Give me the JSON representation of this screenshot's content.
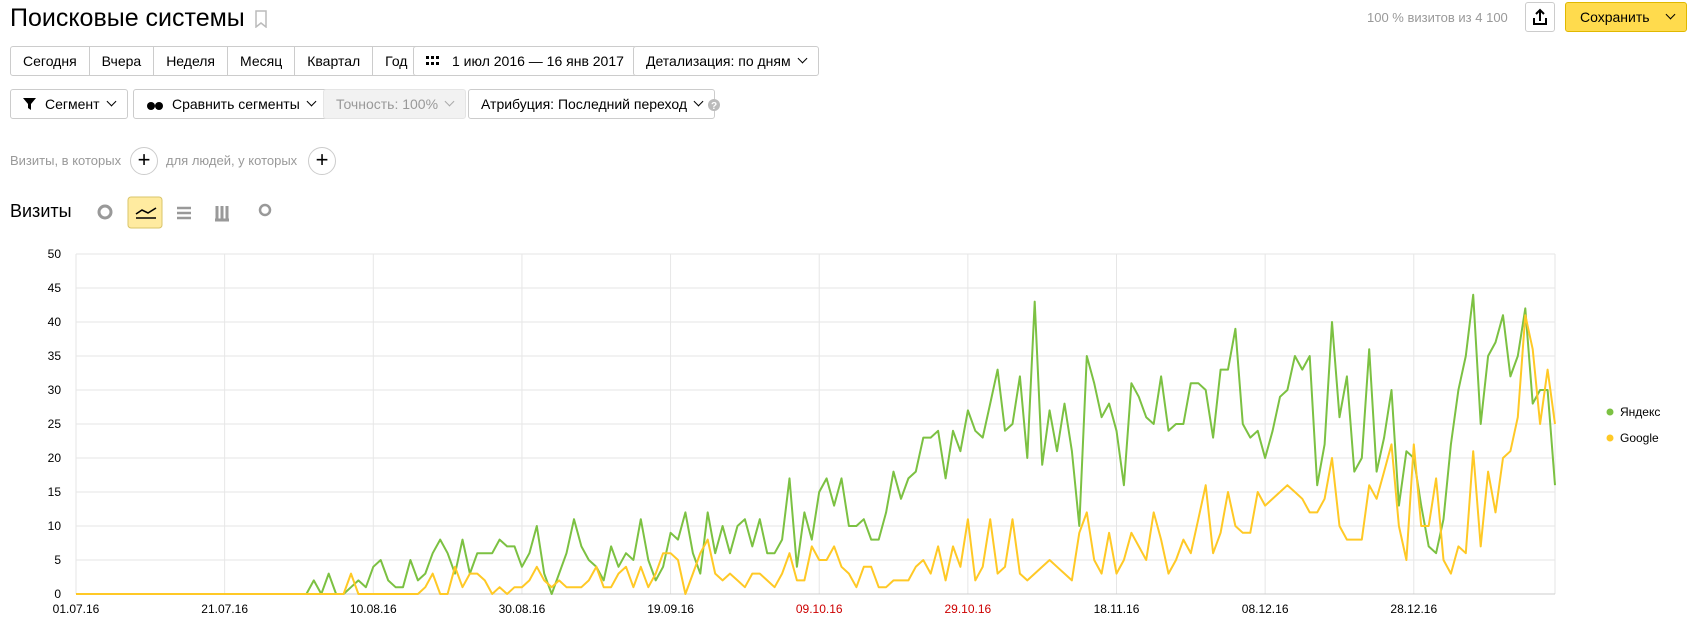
{
  "header": {
    "title": "Поисковые системы",
    "stats": "100 % визитов из 4 100",
    "save": "Сохранить"
  },
  "periods": [
    "Сегодня",
    "Вчера",
    "Неделя",
    "Месяц",
    "Квартал",
    "Год"
  ],
  "date_range": "1 июл 2016 — 16 янв 2017",
  "detail": "Детализация: по дням",
  "segment": "Сегмент",
  "compare": "Сравнить сегменты",
  "accuracy": "Точность: 100%",
  "attribution": "Атрибуция: Последний переход",
  "filter_visits": "Визиты, в которых",
  "filter_people": "для людей, у которых",
  "section_title": "Визиты",
  "chart_data": {
    "type": "line",
    "categories": [
      "01.07.16",
      null,
      null,
      null,
      null,
      null,
      null,
      null,
      null,
      null,
      null,
      null,
      null,
      null,
      null,
      null,
      null,
      null,
      null,
      null,
      "21.07.16",
      null,
      null,
      null,
      null,
      null,
      null,
      null,
      null,
      null,
      null,
      null,
      null,
      null,
      null,
      null,
      null,
      null,
      null,
      null,
      "10.08.16",
      null,
      null,
      null,
      null,
      null,
      null,
      null,
      null,
      null,
      null,
      null,
      null,
      null,
      null,
      null,
      null,
      null,
      null,
      null,
      "30.08.16",
      null,
      null,
      null,
      null,
      null,
      null,
      null,
      null,
      null,
      null,
      null,
      null,
      null,
      null,
      null,
      null,
      null,
      null,
      null,
      "19.09.16",
      null,
      null,
      null,
      null,
      null,
      null,
      null,
      null,
      null,
      null,
      null,
      null,
      null,
      null,
      null,
      null,
      null,
      null,
      null,
      "09.10.16",
      null,
      null,
      null,
      null,
      null,
      null,
      null,
      null,
      null,
      null,
      null,
      null,
      null,
      null,
      null,
      null,
      null,
      null,
      null,
      "29.10.16",
      null,
      null,
      null,
      null,
      null,
      null,
      null,
      null,
      null,
      null,
      null,
      null,
      null,
      null,
      null,
      null,
      null,
      null,
      null,
      "18.11.16",
      null,
      null,
      null,
      null,
      null,
      null,
      null,
      null,
      null,
      null,
      null,
      null,
      null,
      null,
      null,
      null,
      null,
      null,
      null,
      "08.12.16",
      null,
      null,
      null,
      null,
      null,
      null,
      null,
      null,
      null,
      null,
      null,
      null,
      null,
      null,
      null,
      null,
      null,
      null,
      null,
      "28.12.16",
      null,
      null,
      null,
      null,
      null,
      null,
      null,
      null,
      null,
      null,
      null,
      null,
      null,
      null,
      null,
      null,
      null,
      null,
      null
    ],
    "highlighted_categories": [
      100,
      120
    ],
    "highlight_color": "#cc0000",
    "ylim": [
      0,
      50
    ],
    "yticks": [
      0,
      5,
      10,
      15,
      20,
      25,
      30,
      35,
      40,
      45,
      50
    ],
    "grid": true,
    "legend": "right",
    "series": [
      {
        "name": "Яндекс",
        "color": "#7cc142",
        "values": [
          0,
          0,
          0,
          0,
          0,
          0,
          0,
          0,
          0,
          0,
          0,
          0,
          0,
          0,
          0,
          0,
          0,
          0,
          0,
          0,
          0,
          0,
          0,
          0,
          0,
          0,
          0,
          0,
          0,
          0,
          0,
          0,
          2,
          0,
          3,
          0,
          0,
          1,
          2,
          1,
          4,
          5,
          2,
          1,
          1,
          5,
          2,
          3,
          6,
          8,
          6,
          3,
          8,
          3,
          6,
          6,
          6,
          8,
          7,
          7,
          4,
          6,
          10,
          3,
          0,
          3,
          6,
          11,
          7,
          5,
          4,
          2,
          7,
          4,
          6,
          5,
          11,
          5,
          2,
          4,
          9,
          8,
          12,
          6,
          3,
          12,
          6,
          10,
          6,
          10,
          11,
          7,
          11,
          6,
          6,
          8,
          17,
          4,
          12,
          8,
          15,
          17,
          13,
          17,
          10,
          10,
          11,
          8,
          8,
          12,
          18,
          14,
          17,
          18,
          23,
          23,
          24,
          17,
          24,
          21,
          27,
          24,
          23,
          28,
          33,
          24,
          25,
          32,
          20,
          43,
          19,
          27,
          21,
          28,
          21,
          10,
          35,
          31,
          26,
          28,
          24,
          16,
          31,
          29,
          26,
          25,
          32,
          24,
          25,
          25,
          31,
          31,
          30,
          23,
          33,
          33,
          39,
          25,
          23,
          24,
          20,
          24,
          29,
          30,
          35,
          33,
          35,
          16,
          22,
          40,
          26,
          32,
          18,
          20,
          36,
          18,
          23,
          30,
          13,
          21,
          20,
          13,
          7,
          6,
          11,
          22,
          30,
          35,
          44,
          25,
          35,
          37,
          41,
          32,
          35,
          42,
          28,
          30,
          30,
          16
        ]
      },
      {
        "name": "Google",
        "color": "#ffc926",
        "values": [
          0,
          0,
          0,
          0,
          0,
          0,
          0,
          0,
          0,
          0,
          0,
          0,
          0,
          0,
          0,
          0,
          0,
          0,
          0,
          0,
          0,
          0,
          0,
          0,
          0,
          0,
          0,
          0,
          0,
          0,
          0,
          0,
          0,
          0,
          0,
          0,
          0,
          3,
          0,
          0,
          0,
          0,
          0,
          0,
          0,
          0,
          0,
          1,
          3,
          0,
          0,
          4,
          1,
          3,
          3,
          2,
          0,
          1,
          0,
          1,
          1,
          2,
          4,
          2,
          1,
          2,
          1,
          1,
          1,
          2,
          4,
          1,
          1,
          3,
          4,
          1,
          4,
          1,
          3,
          6,
          6,
          5,
          0,
          3,
          6,
          8,
          3,
          2,
          3,
          2,
          1,
          3,
          3,
          2,
          1,
          3,
          6,
          2,
          2,
          7,
          5,
          5,
          7,
          4,
          3,
          1,
          4,
          4,
          1,
          1,
          2,
          2,
          2,
          4,
          5,
          3,
          7,
          2,
          7,
          4,
          11,
          2,
          4,
          11,
          3,
          4,
          11,
          3,
          2,
          3,
          4,
          5,
          4,
          3,
          2,
          9,
          12,
          5,
          3,
          9,
          3,
          5,
          9,
          7,
          5,
          12,
          8,
          3,
          5,
          8,
          6,
          11,
          16,
          6,
          9,
          15,
          10,
          9,
          9,
          15,
          13,
          14,
          15,
          16,
          15,
          14,
          12,
          12,
          14,
          20,
          10,
          8,
          8,
          8,
          16,
          14,
          18,
          22,
          10,
          5,
          22,
          10,
          10,
          17,
          5,
          3,
          7,
          6,
          21,
          7,
          18,
          12,
          20,
          21,
          26,
          41,
          36,
          25,
          33,
          25
        ]
      }
    ]
  }
}
